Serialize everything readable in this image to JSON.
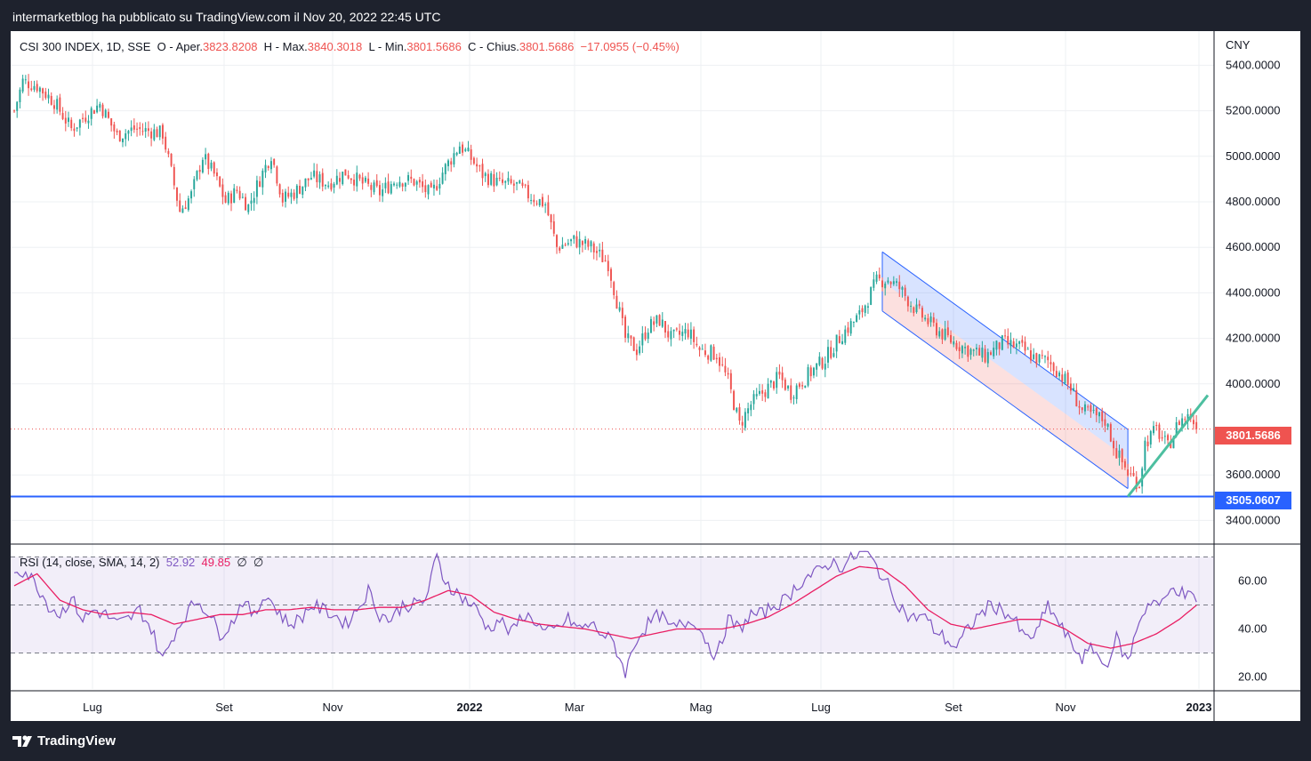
{
  "header": {
    "text": "intermarketblog ha pubblicato su TradingView.com il Nov 20, 2022 22:45 UTC"
  },
  "legend": {
    "symbol": "CSI 300 INDEX, 1D, SSE",
    "o_label": "O",
    "open_label": "Aper.",
    "open": "3823.8208",
    "h_label": "H",
    "high_label": "Max.",
    "high": "3840.3018",
    "l_label": "L",
    "low_label": "Min.",
    "low": "3801.5686",
    "c_label": "C",
    "close_label": "Chius.",
    "close": "3801.5686",
    "change": "−17.0955 (−0.45%)"
  },
  "rsi_legend": {
    "label": "RSI (14, close, SMA, 14, 2)",
    "rsi": "52.92",
    "sma": "49.85",
    "na1": "∅",
    "na2": "∅"
  },
  "currency": "CNY",
  "last_price_tag": "3801.5686",
  "support_tag": "3505.0607",
  "footer": {
    "brand": "TradingView"
  },
  "colors": {
    "up": "#26a69a",
    "down": "#ef5350",
    "rsi": "#7e57c2",
    "rsi_sma": "#e91e63",
    "support": "#2962ff",
    "trendline": "#4dbfa0"
  },
  "chart_data": {
    "type": "candlestick",
    "price_axis_ticks": [
      "5400.0000",
      "5200.0000",
      "5000.0000",
      "4800.0000",
      "4600.0000",
      "4400.0000",
      "4200.0000",
      "4000.0000",
      "3600.0000",
      "3400.0000"
    ],
    "price_range": [
      3300,
      5550
    ],
    "time_axis_labels": [
      "Lug",
      "Set",
      "Nov",
      "2022",
      "Mar",
      "Mag",
      "Lug",
      "Set",
      "Nov",
      "2023"
    ],
    "rsi_axis_ticks": [
      "60.00",
      "40.00",
      "20.00"
    ],
    "rsi_range": [
      15,
      75
    ],
    "rsi_bands": [
      70,
      50,
      30
    ],
    "last_price": 3801.5686,
    "support_level": 3505.0607,
    "close_path": [
      [
        0,
        5200
      ],
      [
        3,
        5330
      ],
      [
        8,
        5310
      ],
      [
        14,
        5240
      ],
      [
        20,
        5120
      ],
      [
        26,
        5190
      ],
      [
        30,
        5230
      ],
      [
        36,
        5090
      ],
      [
        42,
        5120
      ],
      [
        48,
        5110
      ],
      [
        52,
        5100
      ],
      [
        58,
        4760
      ],
      [
        62,
        4830
      ],
      [
        66,
        5000
      ],
      [
        70,
        4920
      ],
      [
        74,
        4800
      ],
      [
        78,
        4850
      ],
      [
        82,
        4780
      ],
      [
        86,
        4900
      ],
      [
        90,
        5010
      ],
      [
        94,
        4810
      ],
      [
        98,
        4840
      ],
      [
        104,
        4910
      ],
      [
        110,
        4880
      ],
      [
        116,
        4930
      ],
      [
        122,
        4880
      ],
      [
        128,
        4840
      ],
      [
        134,
        4900
      ],
      [
        140,
        4890
      ],
      [
        146,
        4830
      ],
      [
        150,
        4930
      ],
      [
        156,
        5050
      ],
      [
        160,
        4990
      ],
      [
        164,
        4920
      ],
      [
        170,
        4880
      ],
      [
        176,
        4870
      ],
      [
        180,
        4830
      ],
      [
        186,
        4790
      ],
      [
        190,
        4600
      ],
      [
        196,
        4630
      ],
      [
        202,
        4600
      ],
      [
        208,
        4530
      ],
      [
        214,
        4200
      ],
      [
        218,
        4150
      ],
      [
        222,
        4250
      ],
      [
        226,
        4280
      ],
      [
        230,
        4200
      ],
      [
        236,
        4230
      ],
      [
        240,
        4150
      ],
      [
        246,
        4130
      ],
      [
        250,
        4010
      ],
      [
        254,
        3820
      ],
      [
        258,
        3910
      ],
      [
        262,
        3960
      ],
      [
        268,
        4030
      ],
      [
        272,
        3960
      ],
      [
        278,
        4040
      ],
      [
        284,
        4110
      ],
      [
        290,
        4220
      ],
      [
        296,
        4300
      ],
      [
        302,
        4450
      ],
      [
        306,
        4460
      ],
      [
        310,
        4420
      ],
      [
        316,
        4320
      ],
      [
        322,
        4250
      ],
      [
        328,
        4190
      ],
      [
        334,
        4150
      ],
      [
        340,
        4120
      ],
      [
        346,
        4180
      ],
      [
        352,
        4160
      ],
      [
        358,
        4110
      ],
      [
        362,
        4100
      ],
      [
        366,
        4050
      ],
      [
        370,
        3980
      ],
      [
        374,
        3880
      ],
      [
        378,
        3860
      ],
      [
        382,
        3840
      ],
      [
        386,
        3700
      ],
      [
        390,
        3610
      ],
      [
        394,
        3560
      ],
      [
        396,
        3740
      ],
      [
        400,
        3800
      ],
      [
        404,
        3720
      ],
      [
        408,
        3840
      ],
      [
        412,
        3860
      ],
      [
        414,
        3801.5686
      ]
    ],
    "rsi_path": [
      [
        0,
        65
      ],
      [
        4,
        64
      ],
      [
        8,
        58
      ],
      [
        12,
        50
      ],
      [
        16,
        46
      ],
      [
        20,
        53
      ],
      [
        24,
        44
      ],
      [
        28,
        48
      ],
      [
        32,
        46
      ],
      [
        36,
        42
      ],
      [
        40,
        44
      ],
      [
        44,
        48
      ],
      [
        48,
        40
      ],
      [
        52,
        27
      ],
      [
        56,
        38
      ],
      [
        60,
        46
      ],
      [
        64,
        52
      ],
      [
        68,
        47
      ],
      [
        72,
        38
      ],
      [
        76,
        42
      ],
      [
        80,
        52
      ],
      [
        84,
        45
      ],
      [
        88,
        55
      ],
      [
        92,
        48
      ],
      [
        96,
        42
      ],
      [
        100,
        44
      ],
      [
        104,
        50
      ],
      [
        108,
        48
      ],
      [
        112,
        46
      ],
      [
        116,
        42
      ],
      [
        120,
        48
      ],
      [
        124,
        56
      ],
      [
        128,
        46
      ],
      [
        132,
        44
      ],
      [
        136,
        50
      ],
      [
        140,
        50
      ],
      [
        144,
        52
      ],
      [
        148,
        70
      ],
      [
        150,
        62
      ],
      [
        154,
        56
      ],
      [
        158,
        52
      ],
      [
        162,
        48
      ],
      [
        166,
        40
      ],
      [
        170,
        44
      ],
      [
        174,
        38
      ],
      [
        178,
        46
      ],
      [
        182,
        44
      ],
      [
        186,
        38
      ],
      [
        190,
        40
      ],
      [
        194,
        44
      ],
      [
        198,
        40
      ],
      [
        202,
        42
      ],
      [
        206,
        38
      ],
      [
        210,
        34
      ],
      [
        214,
        22
      ],
      [
        218,
        36
      ],
      [
        222,
        42
      ],
      [
        226,
        46
      ],
      [
        230,
        40
      ],
      [
        234,
        42
      ],
      [
        238,
        44
      ],
      [
        242,
        36
      ],
      [
        246,
        28
      ],
      [
        250,
        44
      ],
      [
        254,
        40
      ],
      [
        258,
        46
      ],
      [
        262,
        46
      ],
      [
        266,
        50
      ],
      [
        270,
        52
      ],
      [
        274,
        58
      ],
      [
        278,
        62
      ],
      [
        282,
        64
      ],
      [
        286,
        68
      ],
      [
        290,
        66
      ],
      [
        294,
        70
      ],
      [
        298,
        72
      ],
      [
        302,
        66
      ],
      [
        306,
        58
      ],
      [
        310,
        50
      ],
      [
        314,
        44
      ],
      [
        318,
        46
      ],
      [
        322,
        40
      ],
      [
        326,
        36
      ],
      [
        330,
        32
      ],
      [
        334,
        40
      ],
      [
        338,
        46
      ],
      [
        342,
        50
      ],
      [
        346,
        48
      ],
      [
        350,
        44
      ],
      [
        354,
        36
      ],
      [
        358,
        38
      ],
      [
        362,
        50
      ],
      [
        366,
        42
      ],
      [
        370,
        34
      ],
      [
        374,
        28
      ],
      [
        378,
        32
      ],
      [
        382,
        24
      ],
      [
        386,
        36
      ],
      [
        390,
        26
      ],
      [
        394,
        44
      ],
      [
        398,
        52
      ],
      [
        402,
        50
      ],
      [
        406,
        58
      ],
      [
        410,
        54
      ],
      [
        414,
        52.92
      ]
    ],
    "rsi_sma_path": [
      [
        0,
        58
      ],
      [
        8,
        63
      ],
      [
        16,
        52
      ],
      [
        24,
        48
      ],
      [
        32,
        46
      ],
      [
        40,
        47
      ],
      [
        48,
        46
      ],
      [
        56,
        42
      ],
      [
        64,
        44
      ],
      [
        72,
        46
      ],
      [
        80,
        46
      ],
      [
        88,
        48
      ],
      [
        96,
        48
      ],
      [
        104,
        49
      ],
      [
        112,
        48
      ],
      [
        120,
        48
      ],
      [
        128,
        49
      ],
      [
        136,
        49
      ],
      [
        144,
        52
      ],
      [
        152,
        56
      ],
      [
        160,
        54
      ],
      [
        168,
        47
      ],
      [
        176,
        44
      ],
      [
        184,
        42
      ],
      [
        192,
        41
      ],
      [
        200,
        40
      ],
      [
        208,
        38
      ],
      [
        216,
        36
      ],
      [
        224,
        38
      ],
      [
        232,
        40
      ],
      [
        240,
        40
      ],
      [
        248,
        40
      ],
      [
        256,
        42
      ],
      [
        264,
        45
      ],
      [
        272,
        50
      ],
      [
        280,
        56
      ],
      [
        288,
        62
      ],
      [
        296,
        66
      ],
      [
        304,
        65
      ],
      [
        312,
        58
      ],
      [
        320,
        48
      ],
      [
        328,
        42
      ],
      [
        336,
        40
      ],
      [
        344,
        42
      ],
      [
        352,
        44
      ],
      [
        360,
        44
      ],
      [
        368,
        40
      ],
      [
        376,
        34
      ],
      [
        384,
        32
      ],
      [
        392,
        34
      ],
      [
        400,
        38
      ],
      [
        408,
        44
      ],
      [
        414,
        49.85
      ]
    ],
    "channel": {
      "top_start": [
        304,
        4580
      ],
      "top_end": [
        390,
        3800
      ],
      "bottom_start": [
        304,
        4320
      ],
      "bottom_end": [
        390,
        3540
      ]
    },
    "trendline": {
      "start": [
        390,
        3505
      ],
      "end": [
        418,
        3950
      ]
    }
  }
}
